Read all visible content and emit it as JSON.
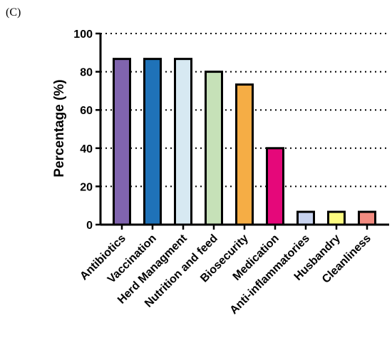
{
  "panel_label": "(C)",
  "chart_data": {
    "type": "bar",
    "ylabel": "Percentage (%)",
    "xlabel": "",
    "ylim": [
      0,
      100
    ],
    "yticks": [
      0,
      20,
      40,
      60,
      80,
      100
    ],
    "grid": "horizontal dotted",
    "categories": [
      "Antibiotics",
      "Vaccination",
      "Herd Managment",
      "Nutrition and feed",
      "Biosecurity",
      "Medication",
      "Anti-inflammatories",
      "Husbandry",
      "Cleanliness"
    ],
    "values": [
      86.7,
      86.7,
      86.7,
      80,
      73.3,
      40,
      6.7,
      6.7,
      6.7
    ],
    "colors": [
      "#8064ae",
      "#1f72b8",
      "#d7e9f2",
      "#c6e1b8",
      "#f5ad45",
      "#e5087a",
      "#c8d3ef",
      "#fdfb80",
      "#f28b80"
    ]
  }
}
